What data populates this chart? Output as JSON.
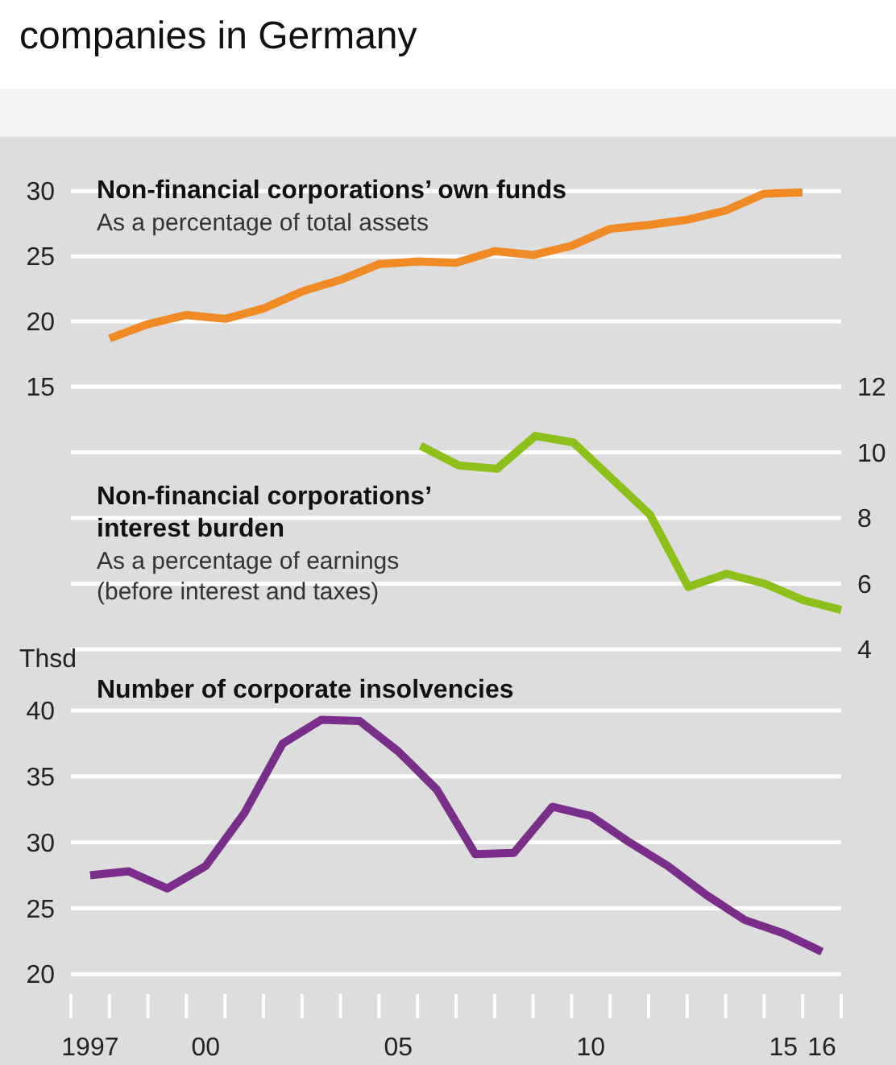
{
  "chart_data": [
    {
      "type": "line",
      "title": "Non-financial corporations’ own funds",
      "subtitle": "As a percentage of total assets",
      "annotations": [
        "companies in Germany"
      ],
      "categories": [
        null,
        null,
        null,
        null,
        null,
        null,
        null,
        null,
        null,
        null,
        null,
        null,
        null,
        null,
        null,
        null,
        null,
        null,
        null
      ],
      "series": [
        {
          "color": "#f08a24",
          "values": [
            18.7,
            19.8,
            20.5,
            20.2,
            21.0,
            22.3,
            23.2,
            24.4,
            24.6,
            24.5,
            25.4,
            25.1,
            25.8,
            27.1,
            27.4,
            27.8,
            28.5,
            29.8,
            29.9
          ]
        }
      ],
      "ylim": [
        15,
        30
      ],
      "yticks": [
        15,
        20,
        25,
        30
      ],
      "grid": "y",
      "tick_labels": "y"
    },
    {
      "type": "line",
      "title": "Non-financial corporations’ interest burden",
      "subtitle": "As a percentage of earnings (before interest and taxes)",
      "categories": [
        null,
        null,
        null,
        null,
        null,
        null,
        null,
        null,
        null,
        null,
        null,
        null
      ],
      "series": [
        {
          "color": "#8cbf1a",
          "values": [
            10.2,
            9.6,
            9.5,
            10.5,
            10.3,
            9.2,
            8.1,
            5.9,
            6.3,
            6.0,
            5.5,
            5.2
          ]
        }
      ],
      "ylim": [
        4,
        12
      ],
      "yticks": [
        4,
        6,
        8,
        10,
        12
      ],
      "grid": "y",
      "tick_labels": "y"
    },
    {
      "type": "line",
      "title": "Number of corporate insolvencies",
      "ylabel": "Thsd",
      "categories": [
        "1997",
        null,
        null,
        "00",
        null,
        null,
        null,
        null,
        "05",
        null,
        null,
        null,
        null,
        "10",
        null,
        null,
        null,
        null,
        "15",
        "16"
      ],
      "series": [
        {
          "color": "#7b2d8b",
          "values": [
            27.5,
            27.8,
            26.5,
            28.2,
            32.2,
            37.5,
            39.3,
            39.2,
            36.9,
            34.0,
            29.1,
            29.2,
            32.7,
            32.0,
            30.0,
            28.2,
            26.0,
            24.1,
            23.1,
            21.7
          ]
        }
      ],
      "ylim": [
        20,
        40
      ],
      "yticks": [
        20,
        25,
        30,
        35,
        40
      ],
      "grid": "y"
    }
  ]
}
